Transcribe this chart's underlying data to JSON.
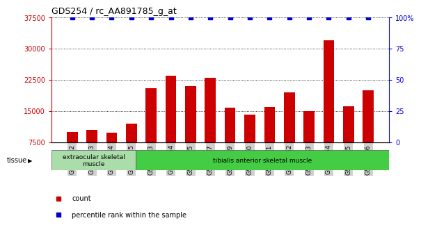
{
  "title": "GDS254 / rc_AA891785_g_at",
  "categories": [
    "GSM4242",
    "GSM4243",
    "GSM4244",
    "GSM4245",
    "GSM5553",
    "GSM5554",
    "GSM5555",
    "GSM5557",
    "GSM5559",
    "GSM5560",
    "GSM5561",
    "GSM5562",
    "GSM5563",
    "GSM5564",
    "GSM5565",
    "GSM5566"
  ],
  "bar_values": [
    10000,
    10500,
    9800,
    12000,
    20500,
    23500,
    21000,
    23000,
    15800,
    14200,
    16000,
    19500,
    15000,
    32000,
    16200,
    20000
  ],
  "percentile_values": [
    100,
    100,
    100,
    100,
    100,
    100,
    100,
    100,
    100,
    100,
    100,
    100,
    100,
    100,
    100,
    100
  ],
  "percentile_missing": [
    false,
    false,
    false,
    false,
    false,
    false,
    false,
    false,
    false,
    false,
    false,
    false,
    false,
    false,
    false,
    false
  ],
  "bar_color": "#cc0000",
  "percentile_color": "#0000cc",
  "ylim_left": [
    7500,
    37500
  ],
  "ylim_right": [
    0,
    100
  ],
  "yticks_left": [
    7500,
    15000,
    22500,
    30000,
    37500
  ],
  "yticks_right": [
    0,
    25,
    50,
    75,
    100
  ],
  "tissue_groups": [
    {
      "label": "extraocular skeletal\nmuscle",
      "start": 0,
      "end": 3,
      "color": "#aaddaa"
    },
    {
      "label": "tibialis anterior skeletal muscle",
      "start": 4,
      "end": 15,
      "color": "#44cc44"
    }
  ],
  "legend_items": [
    {
      "label": "count",
      "color": "#cc0000"
    },
    {
      "label": "percentile rank within the sample",
      "color": "#0000cc"
    }
  ],
  "tissue_label": "tissue",
  "background_color": "#ffffff"
}
